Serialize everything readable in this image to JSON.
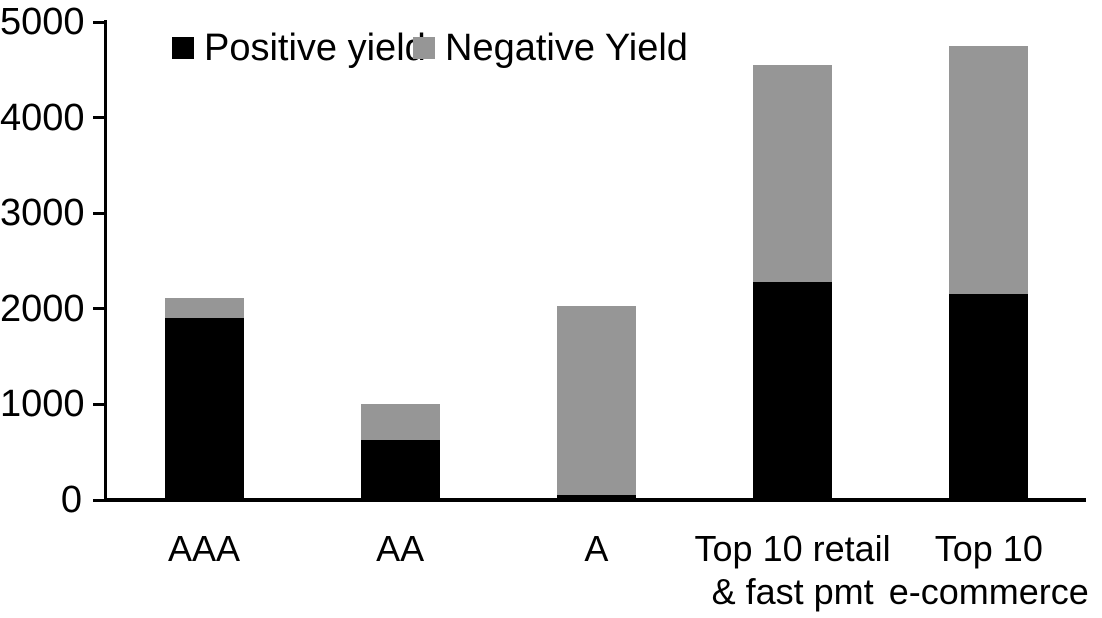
{
  "chart_data": {
    "type": "bar",
    "stacked": true,
    "title": "",
    "xlabel": "",
    "ylabel": "",
    "grid": false,
    "legend_position": "top",
    "background_color": "#ffffff",
    "axis_color": "#000000",
    "ylim": [
      0,
      5000
    ],
    "yticks": [
      0,
      1000,
      2000,
      3000,
      4000,
      5000
    ],
    "categories": [
      "AAA",
      "AA",
      "A",
      "Top 10 retail\n& fast pmt",
      "Top 10\ne-commerce"
    ],
    "series": [
      {
        "name": "Positive yield",
        "color": "#000000",
        "values": [
          1900,
          630,
          50,
          2280,
          2150
        ]
      },
      {
        "name": "Negative Yield",
        "color": "#969696",
        "values": [
          210,
          370,
          1980,
          2270,
          2600
        ]
      }
    ]
  }
}
